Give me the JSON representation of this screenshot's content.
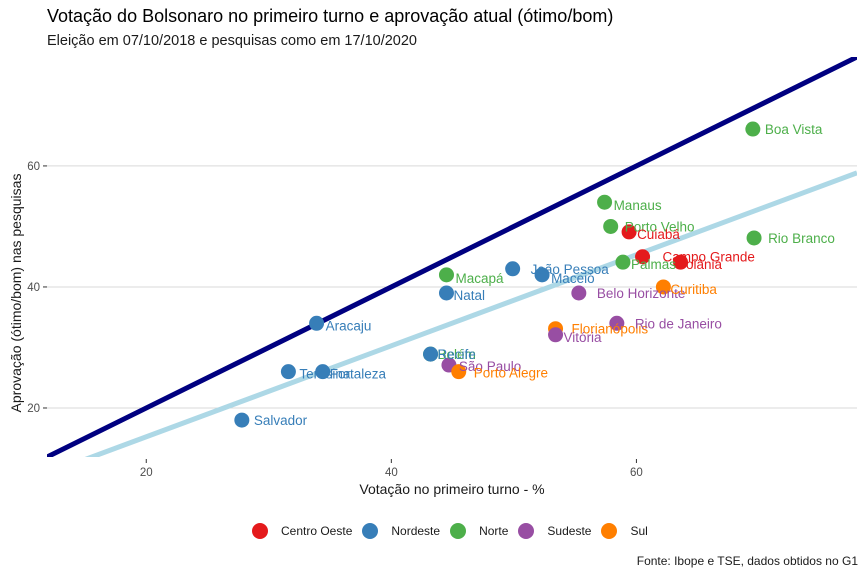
{
  "chart_data": {
    "type": "scatter",
    "title": "Votação do Bolsonaro no primeiro turno e aprovação atual (ótimo/bom)",
    "subtitle": "Eleição em 07/10/2018 e pesquisas como em 17/10/2020",
    "xlabel": "Votação no primeiro turno - %",
    "ylabel": "Aprovação (ótimo/bom) nas pesquisas",
    "caption": "Fonte: Ibope e TSE, dados obtidos no G1",
    "xlim": [
      11.9,
      78
    ],
    "ylim": [
      11.9,
      78
    ],
    "xticks": [
      20,
      40,
      60
    ],
    "yticks": [
      20,
      40,
      60
    ],
    "grid": "horizontal-major",
    "legend_position": "bottom",
    "regions": [
      {
        "name": "Centro Oeste",
        "color": "#E41A1C"
      },
      {
        "name": "Nordeste",
        "color": "#377EB8"
      },
      {
        "name": "Norte",
        "color": "#4DAF4A"
      },
      {
        "name": "Sudeste",
        "color": "#984EA3"
      },
      {
        "name": "Sul",
        "color": "#FF7F00"
      }
    ],
    "reference_lines": [
      {
        "name": "identity",
        "slope": 1.0,
        "intercept": 0.0,
        "color": "#000080"
      },
      {
        "name": "fit",
        "slope": 0.752,
        "intercept": 0.2,
        "color": "#ADD8E6"
      }
    ],
    "points": [
      {
        "city": "Salvador",
        "region": "Nordeste",
        "x": 27.8,
        "y": 18.0
      },
      {
        "city": "Teresina",
        "region": "Nordeste",
        "x": 31.6,
        "y": 26.0
      },
      {
        "city": "Aracaju",
        "region": "Nordeste",
        "x": 33.9,
        "y": 34.0
      },
      {
        "city": "Fortaleza",
        "region": "Nordeste",
        "x": 34.4,
        "y": 26.0
      },
      {
        "city": "Belém",
        "region": "Norte",
        "x": 43.2,
        "y": 28.9
      },
      {
        "city": "Recife",
        "region": "Nordeste",
        "x": 43.2,
        "y": 28.9
      },
      {
        "city": "Natal",
        "region": "Nordeste",
        "x": 44.5,
        "y": 39.0
      },
      {
        "city": "Macapá",
        "region": "Norte",
        "x": 44.5,
        "y": 42.0
      },
      {
        "city": "São Paulo",
        "region": "Sudeste",
        "x": 44.7,
        "y": 27.1
      },
      {
        "city": "Porto Alegre",
        "region": "Sul",
        "x": 45.5,
        "y": 26.0
      },
      {
        "city": "João Pessoa",
        "region": "Nordeste",
        "x": 49.9,
        "y": 43.0
      },
      {
        "city": "Maceió",
        "region": "Nordeste",
        "x": 52.3,
        "y": 42.0
      },
      {
        "city": "Florianópolis",
        "region": "Sul",
        "x": 53.4,
        "y": 33.1
      },
      {
        "city": "Vitória",
        "region": "Sudeste",
        "x": 53.4,
        "y": 32.1
      },
      {
        "city": "Belo Horizonte",
        "region": "Sudeste",
        "x": 55.3,
        "y": 39.0
      },
      {
        "city": "Manaus",
        "region": "Norte",
        "x": 57.4,
        "y": 54.0
      },
      {
        "city": "Porto Velho",
        "region": "Norte",
        "x": 57.9,
        "y": 50.0
      },
      {
        "city": "Rio de Janeiro",
        "region": "Sudeste",
        "x": 58.4,
        "y": 34.0
      },
      {
        "city": "Palmas",
        "region": "Norte",
        "x": 58.9,
        "y": 44.1
      },
      {
        "city": "Cuiabá",
        "region": "Centro Oeste",
        "x": 59.4,
        "y": 49.1
      },
      {
        "city": "Campo Grande",
        "region": "Centro Oeste",
        "x": 60.5,
        "y": 45.0
      },
      {
        "city": "Curitiba",
        "region": "Sul",
        "x": 62.2,
        "y": 40.0
      },
      {
        "city": "Goiânia",
        "region": "Centro Oeste",
        "x": 63.6,
        "y": 44.1
      },
      {
        "city": "Boa Vista",
        "region": "Norte",
        "x": 69.5,
        "y": 66.1
      },
      {
        "city": "Rio Branco",
        "region": "Norte",
        "x": 69.6,
        "y": 48.1
      }
    ]
  }
}
